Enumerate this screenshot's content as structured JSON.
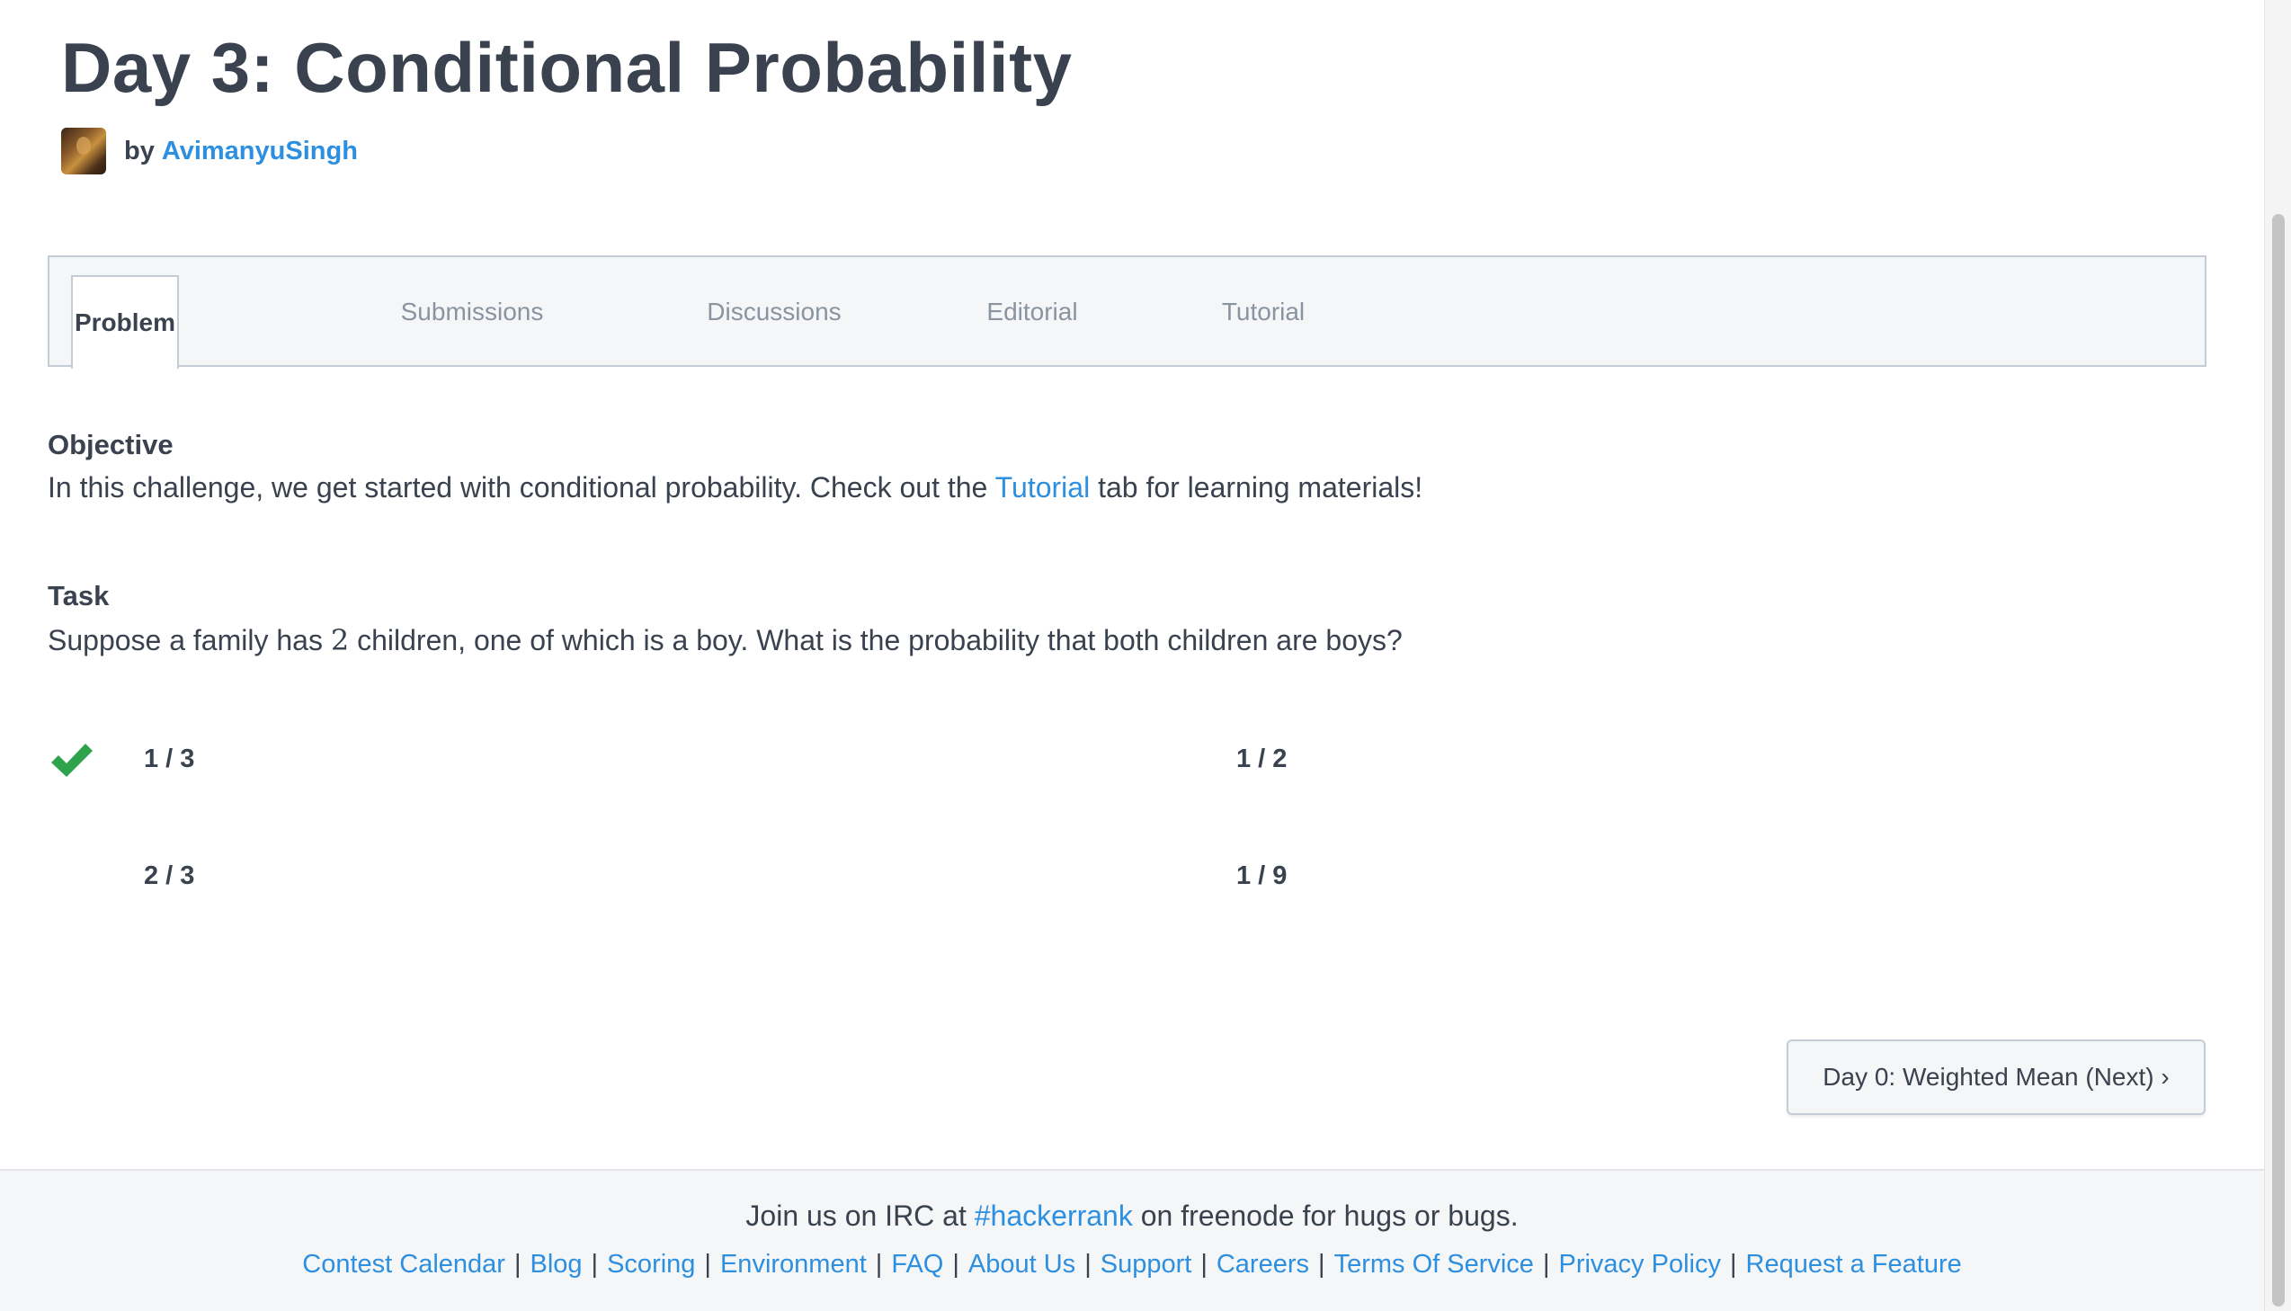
{
  "header": {
    "title": "Day 3: Conditional Probability",
    "by_label": "by",
    "author": "AvimanyuSingh"
  },
  "tabs": [
    {
      "label": "Problem",
      "active": true
    },
    {
      "label": "Submissions",
      "active": false
    },
    {
      "label": "Discussions",
      "active": false
    },
    {
      "label": "Editorial",
      "active": false
    },
    {
      "label": "Tutorial",
      "active": false
    }
  ],
  "objective": {
    "heading": "Objective",
    "text_before": "In this challenge, we get started with conditional probability. Check out the ",
    "link": "Tutorial",
    "text_after": " tab for learning materials!"
  },
  "task": {
    "heading": "Task",
    "text_before": "Suppose a family has ",
    "number": "2",
    "text_after": " children, one of which is a boy. What is the probability that both children are boys?"
  },
  "options": [
    {
      "label": "1 / 3",
      "selected": true
    },
    {
      "label": "1 / 2",
      "selected": false
    },
    {
      "label": "2 / 3",
      "selected": false
    },
    {
      "label": "1 / 9",
      "selected": false
    }
  ],
  "next_button": "Day 0: Weighted Mean (Next) ›",
  "footer": {
    "irc_before": "Join us on IRC at ",
    "irc_link": "#hackerrank",
    "irc_after": " on freenode for hugs or bugs.",
    "links": [
      "Contest Calendar",
      "Blog",
      "Scoring",
      "Environment",
      "FAQ",
      "About Us",
      "Support",
      "Careers",
      "Terms Of Service",
      "Privacy Policy",
      "Request a Feature"
    ],
    "separator": "|"
  },
  "colors": {
    "text": "#39424e",
    "link": "#2d8fe0",
    "check": "#2ea34b",
    "tab_bg": "#f5f6f8",
    "border": "#c4ccd6"
  },
  "icons": {
    "check": "check-icon"
  }
}
